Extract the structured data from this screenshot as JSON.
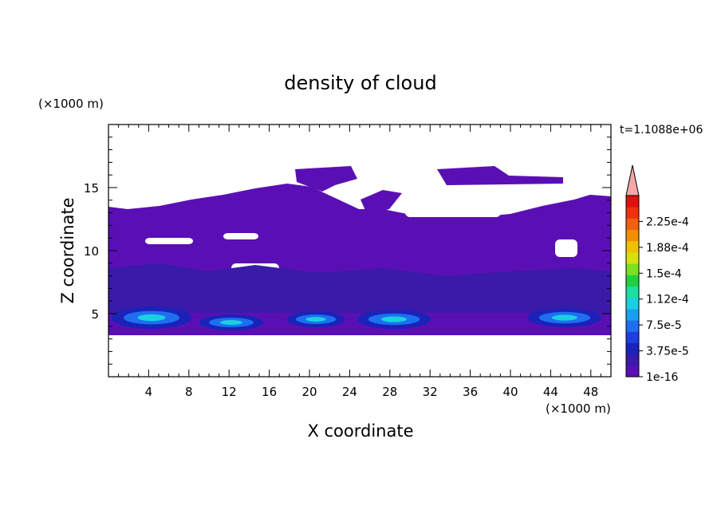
{
  "chart_data": {
    "type": "heatmap",
    "title": "density of cloud",
    "xlabel": "X coordinate",
    "ylabel": "Z coordinate",
    "x_unit": "(×1000 m)",
    "y_unit": "(×1000 m)",
    "time_label": "t=1.1088e+06",
    "xlim": [
      0,
      50
    ],
    "ylim": [
      0,
      20
    ],
    "x_ticks": [
      4,
      8,
      12,
      16,
      20,
      24,
      28,
      32,
      36,
      40,
      44,
      48
    ],
    "y_ticks": [
      5,
      10,
      15
    ],
    "colorbar": {
      "labels": [
        "1e-16",
        "3.75e-5",
        "7.5e-5",
        "1.12e-4",
        "1.5e-4",
        "1.88e-4",
        "2.25e-4"
      ],
      "colors": [
        "#5a0fb4",
        "#3a1aa8",
        "#1a22b8",
        "#1d3fe0",
        "#1e6ef0",
        "#1aa0f0",
        "#1ad0e0",
        "#1ae0a0",
        "#20d040",
        "#7ae020",
        "#d8e010",
        "#f0c000",
        "#f09000",
        "#f06010",
        "#f03010",
        "#e01010"
      ],
      "extend_color": "#f4a8a8"
    }
  }
}
